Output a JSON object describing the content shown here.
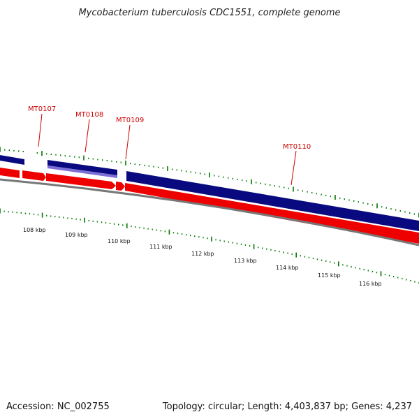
{
  "title": "Mycobacterium tuberculosis CDC1551, complete genome",
  "footer": {
    "accession": "Accession: NC_002755",
    "summary": "Topology: circular; Length: 4,403,837 bp; Genes: 4,237"
  },
  "colors": {
    "forward_strand": "#0a0a80",
    "forward_highlight": "#7b6fd6",
    "reverse_strand": "#ee0000",
    "backbone": "#777777",
    "ticks": "#007700",
    "gene_label": "#cc0000"
  },
  "genes": [
    {
      "label": "MT0107"
    },
    {
      "label": "MT0108"
    },
    {
      "label": "MT0109"
    },
    {
      "label": "MT0110"
    }
  ],
  "scale": {
    "unit": "kbp",
    "labels": [
      "108 kbp",
      "109 kbp",
      "110 kbp",
      "111 kbp",
      "112 kbp",
      "113 kbp",
      "114 kbp",
      "115 kbp",
      "116 kbp"
    ]
  }
}
